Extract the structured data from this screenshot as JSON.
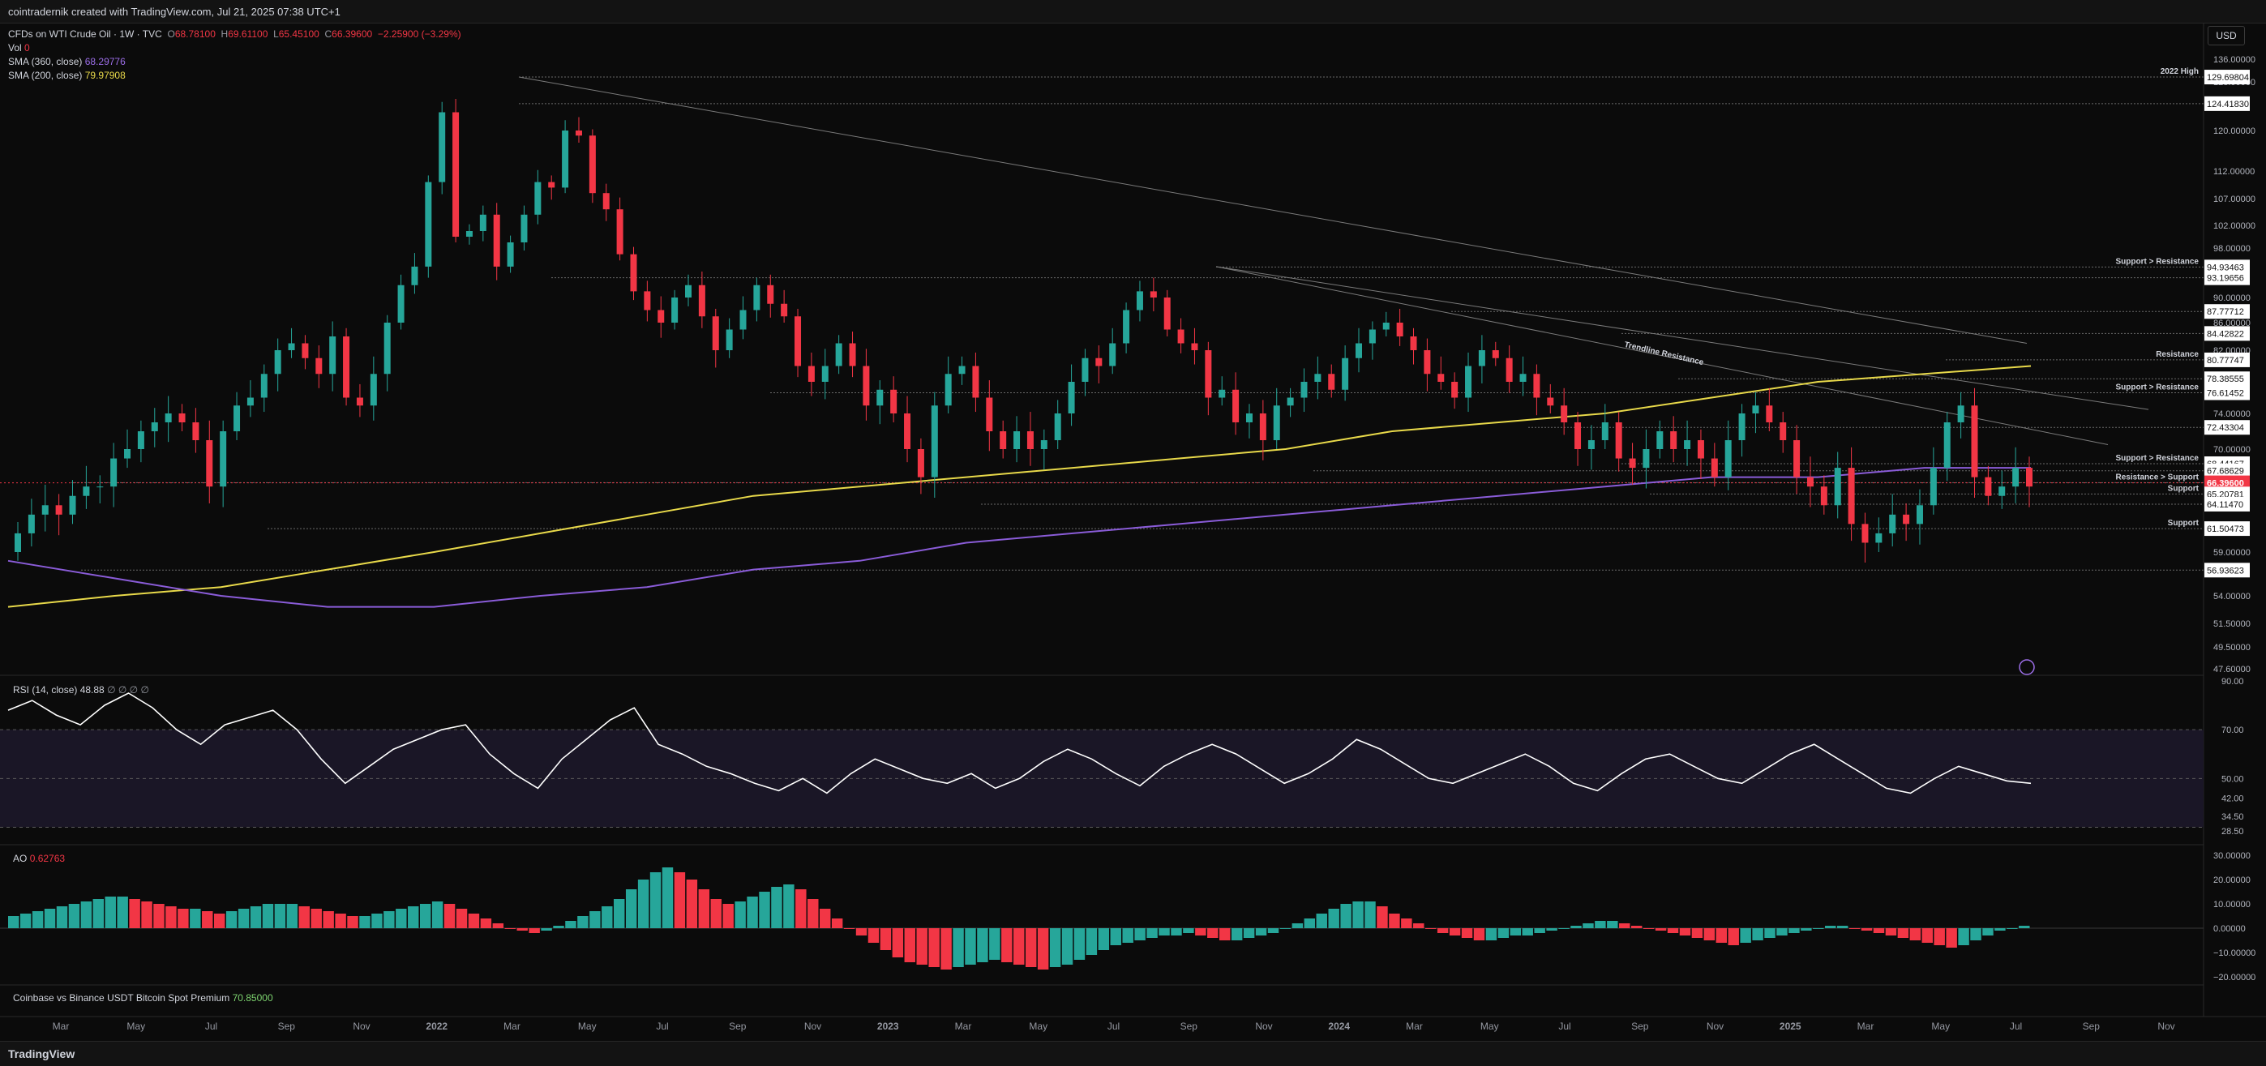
{
  "header": {
    "attribution": "cointradernik created with TradingView.com, Jul 21, 2025 07:38 UTC+1"
  },
  "footer": {
    "logo_text": "TradingView"
  },
  "currency_button": "USD",
  "legend": {
    "symbol": "CFDs on WTI Crude Oil · 1W · TVC",
    "o_label": "O",
    "o_value": "68.78100",
    "h_label": "H",
    "h_value": "69.61100",
    "l_label": "L",
    "l_value": "65.45100",
    "c_label": "C",
    "c_value": "66.39600",
    "change": "−2.25900 (−3.29%)",
    "vol_label": "Vol",
    "vol_value": "0",
    "sma360_label": "SMA (360, close)",
    "sma360_value": "68.29776",
    "sma200_label": "SMA (200, close)",
    "sma200_value": "79.97908",
    "rsi_label": "RSI (14, close)",
    "rsi_value": "48.88",
    "rsi_extra": "∅ ∅ ∅ ∅",
    "ao_label": "AO",
    "ao_value": "0.62763",
    "premium_label": "Coinbase vs Binance USDT Bitcoin Spot Premium",
    "premium_value": "70.85000"
  },
  "colors": {
    "background": "#0b0b0b",
    "up": "#26a69a",
    "down": "#f23645",
    "sma200": "#e8d94a",
    "sma360": "#8a5cd8",
    "rsi_line": "#ffffff",
    "rsi_band": "#1a1626",
    "grid": "#1c1c1c",
    "level_line": "#8a8a8a"
  },
  "chart_data": [
    {
      "type": "candlestick",
      "title": "CFDs on WTI Crude Oil · 1W · TVC",
      "price_axis_ticks": [
        "136.00000",
        "128.00000",
        "120.00000",
        "112.00000",
        "107.00000",
        "102.00000",
        "98.00000",
        "90.00000",
        "86.00000",
        "82.00000",
        "74.00000",
        "70.00000",
        "59.00000",
        "54.00000",
        "51.50000",
        "49.50000",
        "47.60000"
      ],
      "price_labels": [
        {
          "value": 129.69804,
          "text": "129.69804",
          "label": "2022 High",
          "style": "line"
        },
        {
          "value": 124.4183,
          "text": "124.41830",
          "label": "",
          "style": "line"
        },
        {
          "value": 94.93463,
          "text": "94.93463",
          "label": "Support > Resistance",
          "style": "line"
        },
        {
          "value": 93.19656,
          "text": "93.19656",
          "label": "",
          "style": "line"
        },
        {
          "value": 87.77712,
          "text": "87.77712",
          "label": "",
          "style": "line"
        },
        {
          "value": 84.42822,
          "text": "84.42822",
          "label": "",
          "style": "line"
        },
        {
          "value": 80.77747,
          "text": "80.77747",
          "label": "Resistance",
          "style": "line"
        },
        {
          "value": 78.38555,
          "text": "78.38555",
          "label": "",
          "style": "line"
        },
        {
          "value": 76.61452,
          "text": "76.61452",
          "label": "Support > Resistance",
          "style": "line"
        },
        {
          "value": 72.43304,
          "text": "72.43304",
          "label": "",
          "style": "line"
        },
        {
          "value": 68.44167,
          "text": "68.44167",
          "label": "Support > Resistance",
          "style": "line"
        },
        {
          "value": 67.68629,
          "text": "67.68629",
          "label": "",
          "style": "line"
        },
        {
          "value": 66.42167,
          "text": "66.42167",
          "label": "Resistance > Support",
          "style": "line"
        },
        {
          "value": 66.396,
          "text": "66.39600",
          "label": "",
          "style": "current"
        },
        {
          "value": 65.20781,
          "text": "65.20781",
          "label": "Support",
          "style": "line"
        },
        {
          "value": 64.1147,
          "text": "64.11470",
          "label": "",
          "style": "line"
        },
        {
          "value": 61.50473,
          "text": "61.50473",
          "label": "Support",
          "style": "line"
        },
        {
          "value": 56.93623,
          "text": "56.93623",
          "label": "",
          "style": "line"
        }
      ],
      "annotations": [
        "Trendline Resistance"
      ],
      "time_axis": [
        "Mar",
        "May",
        "Jul",
        "Sep",
        "Nov",
        "2022",
        "Mar",
        "May",
        "Jul",
        "Sep",
        "Nov",
        "2023",
        "Mar",
        "May",
        "Jul",
        "Sep",
        "Nov",
        "2024",
        "Mar",
        "May",
        "Jul",
        "Sep",
        "Nov",
        "2025",
        "Mar",
        "May",
        "Jul",
        "Sep",
        "Nov"
      ],
      "weekly_close_2021_to_2025": [
        61,
        63,
        64,
        63,
        65,
        66,
        66,
        69,
        70,
        72,
        73,
        74,
        73,
        71,
        66,
        72,
        75,
        76,
        79,
        82,
        83,
        81,
        79,
        84,
        76,
        75,
        79,
        86,
        92,
        95,
        110,
        123,
        100,
        101,
        104,
        95,
        99,
        104,
        110,
        109,
        120,
        119,
        108,
        105,
        97,
        91,
        88,
        86,
        90,
        92,
        87,
        82,
        85,
        88,
        92,
        89,
        87,
        80,
        78,
        80,
        83,
        80,
        75,
        77,
        74,
        70,
        67,
        75,
        79,
        80,
        76,
        72,
        70,
        72,
        70,
        71,
        74,
        78,
        81,
        80,
        83,
        88,
        91,
        90,
        85,
        83,
        82,
        76,
        77,
        73,
        74,
        71,
        75,
        76,
        78,
        79,
        77,
        81,
        83,
        85,
        86,
        84,
        82,
        79,
        78,
        76,
        80,
        82,
        81,
        78,
        79,
        76,
        75,
        73,
        70,
        71,
        73,
        69,
        68,
        70,
        72,
        70,
        71,
        69,
        67,
        71,
        74,
        75,
        73,
        71,
        67,
        66,
        64,
        68,
        62,
        60,
        61,
        63,
        62,
        64,
        68,
        73,
        75,
        67,
        65,
        66,
        68,
        66
      ],
      "sma200_approx": [
        53,
        54,
        55,
        57,
        59,
        61,
        63,
        65,
        66,
        67,
        68,
        69,
        70,
        72,
        73,
        74,
        76,
        78,
        79,
        80
      ],
      "sma360_approx": [
        58,
        56,
        54,
        53,
        53,
        54,
        55,
        57,
        58,
        60,
        61,
        62,
        63,
        64,
        65,
        66,
        67,
        67,
        68,
        68
      ]
    },
    {
      "type": "line",
      "title": "RSI (14, close)",
      "y_ticks": [
        "90.00",
        "70.00",
        "50.00",
        "42.00",
        "34.50",
        "28.50"
      ],
      "band": [
        30,
        70
      ],
      "series": [
        {
          "name": "RSI",
          "values": [
            78,
            82,
            76,
            72,
            80,
            85,
            79,
            70,
            64,
            72,
            75,
            78,
            70,
            58,
            48,
            55,
            62,
            66,
            70,
            72,
            60,
            52,
            46,
            58,
            66,
            74,
            79,
            64,
            60,
            55,
            52,
            48,
            45,
            50,
            44,
            52,
            58,
            54,
            50,
            48,
            52,
            46,
            50,
            57,
            62,
            58,
            52,
            47,
            55,
            60,
            64,
            60,
            54,
            48,
            52,
            58,
            66,
            62,
            56,
            50,
            48,
            52,
            56,
            60,
            55,
            48,
            45,
            52,
            58,
            60,
            55,
            50,
            48,
            54,
            60,
            64,
            58,
            52,
            46,
            44,
            50,
            55,
            52,
            49,
            48
          ]
        }
      ]
    },
    {
      "type": "bar",
      "title": "AO",
      "y_ticks": [
        "30.00000",
        "20.00000",
        "10.00000",
        "0.00000",
        "−10.00000",
        "−20.00000"
      ],
      "series": [
        {
          "name": "AO",
          "values": [
            5,
            6,
            7,
            8,
            9,
            10,
            11,
            12,
            13,
            13,
            12,
            11,
            10,
            9,
            8,
            8,
            7,
            6,
            7,
            8,
            9,
            10,
            10,
            10,
            9,
            8,
            7,
            6,
            5,
            5,
            6,
            7,
            8,
            9,
            10,
            11,
            10,
            8,
            6,
            4,
            2,
            0,
            -1,
            -2,
            -1,
            1,
            3,
            5,
            7,
            9,
            12,
            16,
            20,
            23,
            25,
            23,
            20,
            16,
            12,
            10,
            11,
            13,
            15,
            17,
            18,
            16,
            12,
            8,
            4,
            0,
            -3,
            -6,
            -9,
            -12,
            -14,
            -15,
            -16,
            -17,
            -16,
            -15,
            -14,
            -13,
            -14,
            -15,
            -16,
            -17,
            -16,
            -15,
            -13,
            -11,
            -9,
            -7,
            -6,
            -5,
            -4,
            -3,
            -3,
            -2,
            -3,
            -4,
            -5,
            -5,
            -4,
            -3,
            -2,
            0,
            2,
            4,
            6,
            8,
            10,
            11,
            11,
            9,
            6,
            4,
            2,
            0,
            -2,
            -3,
            -4,
            -5,
            -5,
            -4,
            -3,
            -3,
            -2,
            -1,
            0,
            1,
            2,
            3,
            3,
            2,
            1,
            0,
            -1,
            -2,
            -3,
            -4,
            -5,
            -6,
            -7,
            -6,
            -5,
            -4,
            -3,
            -2,
            -1,
            0,
            1,
            1,
            0,
            -1,
            -2,
            -3,
            -4,
            -5,
            -6,
            -7,
            -8,
            -7,
            -5,
            -3,
            -1,
            0,
            1
          ]
        }
      ]
    }
  ]
}
